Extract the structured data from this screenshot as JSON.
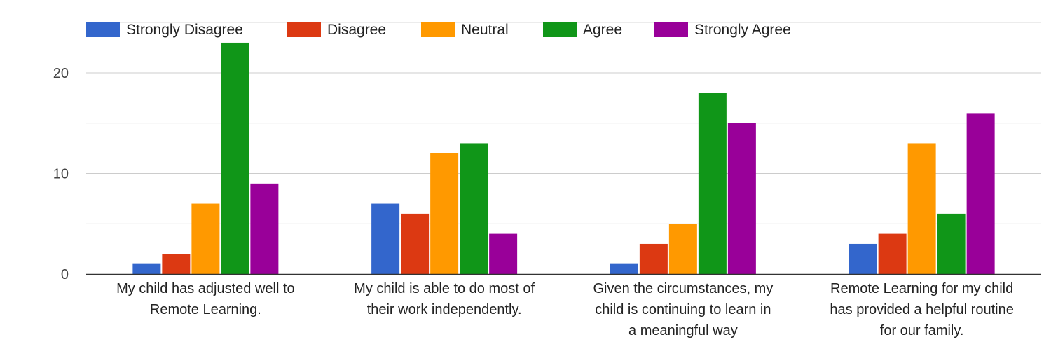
{
  "chart_data": {
    "type": "bar",
    "categories": [
      [
        "My child has adjusted well to",
        "Remote Learning."
      ],
      [
        "My child is able to do most of",
        "their work independently."
      ],
      [
        "Given the circumstances, my",
        "child is continuing to learn in",
        "a meaningful way"
      ],
      [
        "Remote Learning for my child",
        "has provided a helpful routine",
        "for our family."
      ]
    ],
    "series": [
      {
        "name": "Strongly Disagree",
        "color": "#3366cc",
        "values": [
          1,
          7,
          1,
          3
        ]
      },
      {
        "name": "Disagree",
        "color": "#dc3912",
        "values": [
          2,
          6,
          3,
          4
        ]
      },
      {
        "name": "Neutral",
        "color": "#ff9900",
        "values": [
          7,
          12,
          5,
          13
        ]
      },
      {
        "name": "Agree",
        "color": "#109618",
        "values": [
          23,
          13,
          18,
          6
        ]
      },
      {
        "name": "Strongly Agree",
        "color": "#990099",
        "values": [
          9,
          4,
          15,
          16
        ]
      }
    ],
    "yticks": [
      0,
      10,
      20
    ],
    "ylim": [
      0,
      25
    ],
    "legend_position": "top",
    "grid": true
  }
}
